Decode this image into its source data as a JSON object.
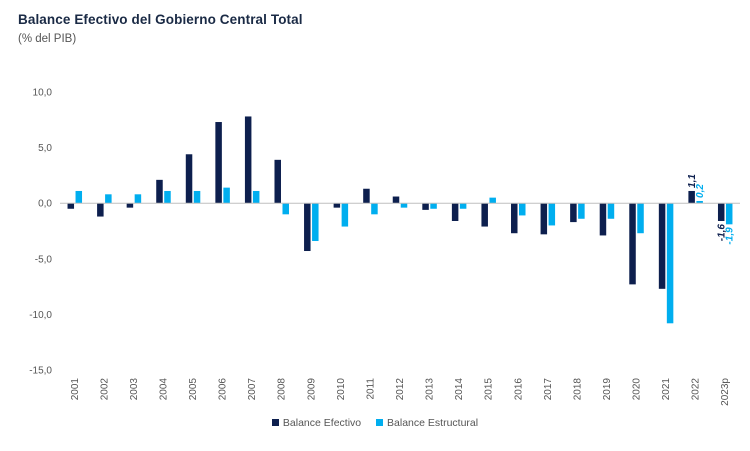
{
  "chart_data": {
    "type": "bar",
    "title": "Balance Efectivo del Gobierno Central Total",
    "subtitle": "(% del PIB)",
    "categories": [
      "2001",
      "2002",
      "2003",
      "2004",
      "2005",
      "2006",
      "2007",
      "2008",
      "2009",
      "2010",
      "2011",
      "2012",
      "2013",
      "2014",
      "2015",
      "2016",
      "2017",
      "2018",
      "2019",
      "2020",
      "2021",
      "2022",
      "2023p"
    ],
    "series": [
      {
        "name": "Balance Efectivo",
        "color": "#0d1f4e",
        "values": [
          -0.5,
          -1.2,
          -0.4,
          2.1,
          4.4,
          7.3,
          7.8,
          3.9,
          -4.3,
          -0.4,
          1.3,
          0.6,
          -0.6,
          -1.6,
          -2.1,
          -2.7,
          -2.8,
          -1.7,
          -2.9,
          -7.3,
          -7.7,
          1.1,
          -1.6
        ]
      },
      {
        "name": "Balance Estructural",
        "color": "#00aeef",
        "values": [
          1.1,
          0.8,
          0.8,
          1.1,
          1.1,
          1.4,
          1.1,
          -1.0,
          -3.4,
          -2.1,
          -1.0,
          -0.4,
          -0.5,
          -0.5,
          0.5,
          -1.1,
          -2.0,
          -1.4,
          -1.4,
          -2.7,
          -10.8,
          0.2,
          -1.9
        ]
      }
    ],
    "ylim": [
      -15,
      10
    ],
    "yticks": [
      10,
      5,
      0,
      -5,
      -10,
      -15
    ],
    "ytick_labels": [
      "10,0",
      "5,0",
      "0,0",
      "-5,0",
      "-10,0",
      "-15,0"
    ],
    "data_labels": [
      {
        "category": "2022",
        "series": 0,
        "text": "1,1"
      },
      {
        "category": "2022",
        "series": 1,
        "text": "0,2"
      },
      {
        "category": "2023p",
        "series": 0,
        "text": "-1,6"
      },
      {
        "category": "2023p",
        "series": 1,
        "text": "-1,9"
      }
    ],
    "legend_position": "bottom",
    "grid": false
  }
}
